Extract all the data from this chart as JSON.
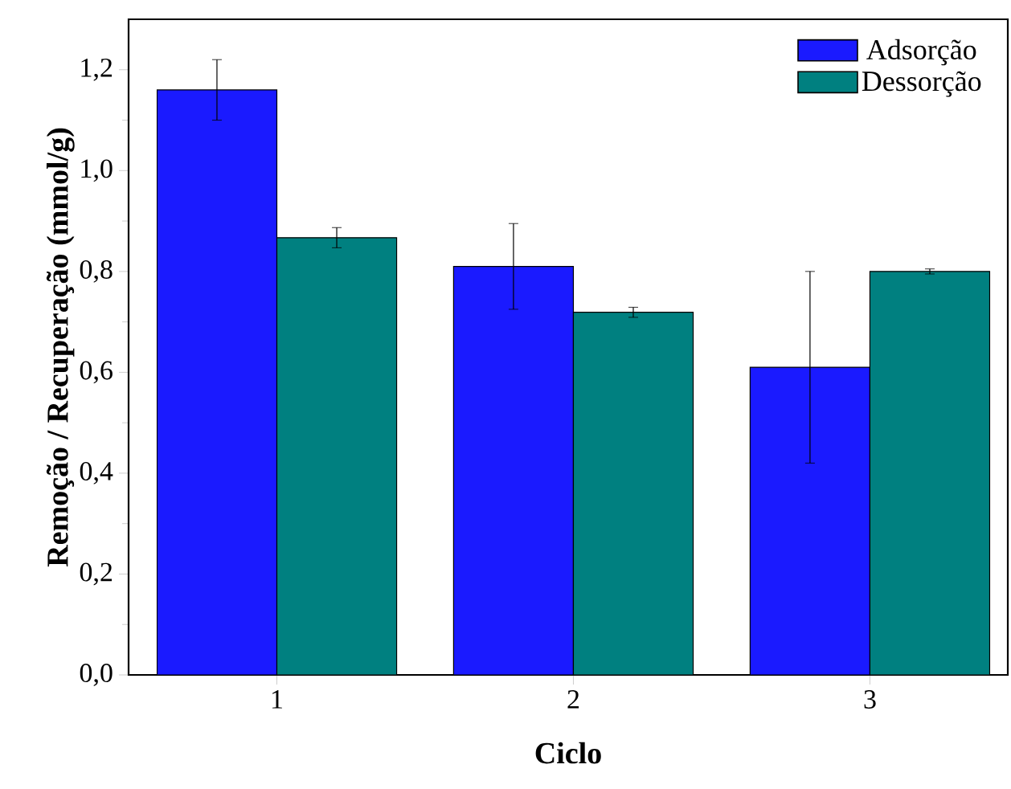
{
  "chart_data": {
    "type": "bar",
    "xlabel": "Ciclo",
    "ylabel": "Remoção / Recuperação (mmol/g)",
    "categories": [
      "1",
      "2",
      "3"
    ],
    "series": [
      {
        "name": "Adsorção",
        "color": "#1a1aff",
        "values": [
          1.16,
          0.81,
          0.61
        ],
        "errors": [
          0.06,
          0.085,
          0.19
        ]
      },
      {
        "name": "Dessorção",
        "color": "#008080",
        "values": [
          0.867,
          0.719,
          0.8
        ],
        "errors": [
          0.02,
          0.01,
          0.005
        ]
      }
    ],
    "ylim": [
      0,
      1.3
    ],
    "yticks": [
      {
        "value": 0,
        "label": "0,0"
      },
      {
        "value": 0.2,
        "label": "0,2"
      },
      {
        "value": 0.4,
        "label": "0,4"
      },
      {
        "value": 0.6,
        "label": "0,6"
      },
      {
        "value": 0.8,
        "label": "0,8"
      },
      {
        "value": 1.0,
        "label": "1,0"
      },
      {
        "value": 1.2,
        "label": "1,2"
      }
    ],
    "legend": "top right"
  }
}
